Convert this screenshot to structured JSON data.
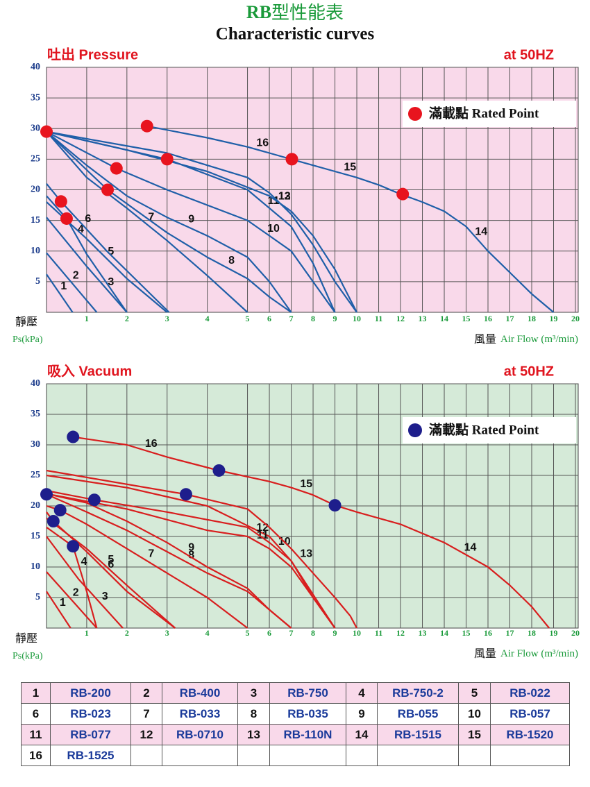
{
  "header": {
    "title_rb": "RB",
    "title_rest": "型性能表",
    "subtitle": "Characteristic curves"
  },
  "chart_data": [
    {
      "type": "line",
      "title": "吐出 Pressure",
      "annotation": "at 50HZ",
      "y_label": "靜壓",
      "y_unit": "Ps(kPa)",
      "x_label": "風量",
      "x_unit": "Air Flow (m³/min)",
      "xlim": [
        0,
        20
      ],
      "xticks": [
        1,
        2,
        3,
        4,
        5,
        6,
        7,
        8,
        9,
        10,
        11,
        12,
        13,
        14,
        15,
        16,
        17,
        18,
        19,
        20
      ],
      "x_scale": "piecewise",
      "x_break": 5,
      "ylim": [
        0,
        40
      ],
      "yticks": [
        5,
        10,
        15,
        20,
        25,
        30,
        35,
        40
      ],
      "grid": true,
      "background": "#f9d9ea",
      "legend": "upper right",
      "series": [
        {
          "name": "1",
          "color": "#1f5fa8",
          "x": [
            0,
            0.65
          ],
          "values": [
            6.2,
            0
          ]
        },
        {
          "name": "2",
          "color": "#1f5fa8",
          "x": [
            0,
            1.25
          ],
          "values": [
            9.7,
            0
          ]
        },
        {
          "name": "3",
          "color": "#1f5fa8",
          "x": [
            0,
            1,
            2
          ],
          "values": [
            15.5,
            7.5,
            0
          ]
        },
        {
          "name": "4",
          "color": "#1f5fa8",
          "x": [
            0,
            0.5,
            1,
            2
          ],
          "values": [
            19,
            15.3,
            9.5,
            0
          ]
        },
        {
          "name": "5",
          "color": "#1f5fa8",
          "x": [
            0,
            1,
            2,
            3
          ],
          "values": [
            18,
            12,
            5.5,
            0
          ]
        },
        {
          "name": "6",
          "color": "#1f5fa8",
          "x": [
            0,
            0.36,
            1.5,
            3.05
          ],
          "values": [
            21,
            18.1,
            10,
            0
          ]
        },
        {
          "name": "7",
          "color": "#1f5fa8",
          "x": [
            0,
            1,
            2,
            3,
            4,
            5
          ],
          "values": [
            29.5,
            22,
            17,
            11.7,
            6,
            0
          ]
        },
        {
          "name": "8",
          "color": "#1f5fa8",
          "x": [
            0,
            1.52,
            3,
            4,
            5,
            6,
            7
          ],
          "values": [
            29.5,
            20,
            13,
            9,
            5.5,
            2.5,
            0
          ]
        },
        {
          "name": "9",
          "color": "#1f5fa8",
          "x": [
            0,
            1,
            2,
            3,
            4,
            5,
            6,
            7
          ],
          "values": [
            29.5,
            24,
            19,
            15.5,
            12.5,
            9,
            5,
            0
          ]
        },
        {
          "name": "10",
          "color": "#1f5fa8",
          "x": [
            0,
            1.74,
            3,
            5,
            7,
            8,
            9
          ],
          "values": [
            29.5,
            23.5,
            20,
            15,
            10,
            5,
            0
          ]
        },
        {
          "name": "11",
          "color": "#1f5fa8",
          "x": [
            0,
            3,
            5,
            7,
            8,
            9
          ],
          "values": [
            29.5,
            25,
            20,
            14,
            8,
            0
          ]
        },
        {
          "name": "12",
          "color": "#1f5fa8",
          "x": [
            0,
            2,
            4,
            6,
            7,
            8,
            9,
            10
          ],
          "values": [
            29.5,
            26.5,
            23,
            19,
            16.5,
            12.5,
            7,
            0
          ]
        },
        {
          "name": "13",
          "color": "#1f5fa8",
          "x": [
            0,
            3,
            5,
            6,
            7,
            8,
            9,
            10
          ],
          "values": [
            29.5,
            26,
            22,
            19.5,
            16,
            11,
            5,
            0
          ]
        },
        {
          "name": "16",
          "color": "#1f5fa8",
          "x": [
            2.5,
            4,
            5,
            6,
            7
          ],
          "values": [
            30.4,
            28.5,
            27,
            26,
            25
          ]
        },
        {
          "name": "15",
          "color": "#1f5fa8",
          "x": [
            7,
            8,
            9,
            10,
            11,
            12
          ],
          "values": [
            25,
            24,
            23,
            22,
            20.8,
            19.3
          ]
        },
        {
          "name": "14",
          "color": "#1f5fa8",
          "x": [
            12,
            13,
            14,
            15,
            16,
            17,
            18,
            19
          ],
          "values": [
            19.3,
            18,
            16.5,
            14,
            10,
            6.5,
            3,
            0
          ]
        }
      ],
      "rated_points": {
        "name": "滿載點 Rated Point",
        "color": "#e8141e",
        "x": [
          0,
          2.5,
          3,
          1.74,
          1.52,
          0.36,
          0.5,
          7.03,
          12.1
        ],
        "values": [
          29.5,
          30.4,
          25,
          23.5,
          20,
          18.1,
          15.3,
          25,
          19.3
        ]
      }
    },
    {
      "type": "line",
      "title": "吸入 Vacuum",
      "annotation": "at 50HZ",
      "y_label": "靜壓",
      "y_unit": "Ps(kPa)",
      "x_label": "風量",
      "x_unit": "Air Flow (m³/min)",
      "xlim": [
        0,
        20
      ],
      "xticks": [
        1,
        2,
        3,
        4,
        5,
        6,
        7,
        8,
        9,
        10,
        11,
        12,
        13,
        14,
        15,
        16,
        17,
        18,
        19,
        20
      ],
      "x_scale": "piecewise",
      "x_break": 5,
      "ylim": [
        0,
        40
      ],
      "yticks": [
        5,
        10,
        15,
        20,
        25,
        30,
        35,
        40
      ],
      "grid": true,
      "background": "#d5ead8",
      "legend": "upper right",
      "series": [
        {
          "name": "1",
          "color": "#d81e1e",
          "x": [
            0,
            0.6
          ],
          "values": [
            6,
            0
          ]
        },
        {
          "name": "2",
          "color": "#d81e1e",
          "x": [
            0,
            1.25
          ],
          "values": [
            9.2,
            0
          ]
        },
        {
          "name": "3",
          "color": "#d81e1e",
          "x": [
            0,
            0.8,
            1.9
          ],
          "values": [
            15,
            8,
            0
          ]
        },
        {
          "name": "4",
          "color": "#d81e1e",
          "x": [
            0,
            0.66,
            1,
            1.25
          ],
          "values": [
            16.5,
            13.4,
            6,
            0
          ]
        },
        {
          "name": "5",
          "color": "#d81e1e",
          "x": [
            0,
            1,
            2,
            3.2
          ],
          "values": [
            18,
            13,
            7,
            0
          ]
        },
        {
          "name": "6",
          "color": "#d81e1e",
          "x": [
            0,
            0.17,
            1,
            2,
            3.2
          ],
          "values": [
            19,
            17.5,
            12.5,
            6,
            0
          ]
        },
        {
          "name": "7",
          "color": "#d81e1e",
          "x": [
            0,
            0.34,
            1,
            2,
            3,
            4,
            5
          ],
          "values": [
            20,
            19.3,
            17,
            13,
            9,
            5,
            0
          ]
        },
        {
          "name": "8",
          "color": "#d81e1e",
          "x": [
            0,
            1,
            2,
            3,
            4,
            5,
            6,
            7
          ],
          "values": [
            21.9,
            19,
            16,
            12.5,
            9,
            6,
            3,
            0
          ]
        },
        {
          "name": "9",
          "color": "#d81e1e",
          "x": [
            0,
            1,
            2,
            3,
            4,
            5,
            6,
            7
          ],
          "values": [
            22,
            20.5,
            17.5,
            14,
            10,
            6.5,
            3,
            0
          ]
        },
        {
          "name": "10",
          "color": "#d81e1e",
          "x": [
            0,
            2,
            4,
            6,
            7,
            8,
            9
          ],
          "values": [
            25,
            23,
            20,
            15,
            11,
            5.5,
            0
          ]
        },
        {
          "name": "11",
          "color": "#d81e1e",
          "x": [
            0,
            2,
            4,
            5,
            6,
            7,
            8,
            9
          ],
          "values": [
            22,
            19.5,
            16,
            15,
            13,
            10,
            5,
            0
          ]
        },
        {
          "name": "12",
          "color": "#d81e1e",
          "x": [
            0,
            1.19,
            3,
            5,
            6,
            7,
            8,
            9
          ],
          "values": [
            22.5,
            21,
            19,
            16.5,
            14,
            11,
            5,
            0
          ]
        },
        {
          "name": "13",
          "color": "#d81e1e",
          "x": [
            0,
            3.47,
            5,
            6,
            7,
            8,
            9,
            9.7,
            10
          ],
          "values": [
            25.8,
            21.9,
            19.5,
            16.5,
            13,
            9,
            5,
            2,
            0
          ]
        },
        {
          "name": "16",
          "color": "#d81e1e",
          "x": [
            0.66,
            2,
            3,
            4.29
          ],
          "values": [
            31.3,
            30,
            28,
            25.8
          ]
        },
        {
          "name": "15",
          "color": "#d81e1e",
          "x": [
            4.29,
            6,
            7,
            8,
            9
          ],
          "values": [
            25.8,
            24,
            23,
            21.8,
            20.1
          ]
        },
        {
          "name": "14",
          "color": "#d81e1e",
          "x": [
            9,
            10,
            12,
            14,
            16,
            17,
            18,
            18.8
          ],
          "values": [
            20.1,
            19,
            17,
            14,
            10,
            7,
            3.5,
            0
          ]
        }
      ],
      "rated_points": {
        "name": "滿載點 Rated Point",
        "color": "#1e1e8c",
        "x": [
          0.66,
          4.29,
          9,
          3.47,
          1.19,
          0,
          0.34,
          0.17,
          0.66
        ],
        "values": [
          31.3,
          25.8,
          20.1,
          21.9,
          21,
          21.9,
          19.3,
          17.5,
          13.4
        ]
      }
    }
  ],
  "table": {
    "rows": [
      [
        1,
        "RB-200",
        2,
        "RB-400",
        3,
        "RB-750",
        4,
        "RB-750-2",
        5,
        "RB-022"
      ],
      [
        6,
        "RB-023",
        7,
        "RB-033",
        8,
        "RB-035",
        9,
        "RB-055",
        10,
        "RB-057"
      ],
      [
        11,
        "RB-077",
        12,
        "RB-0710",
        13,
        "RB-110N",
        14,
        "RB-1515",
        15,
        "RB-1520"
      ],
      [
        16,
        "RB-1525"
      ]
    ]
  }
}
